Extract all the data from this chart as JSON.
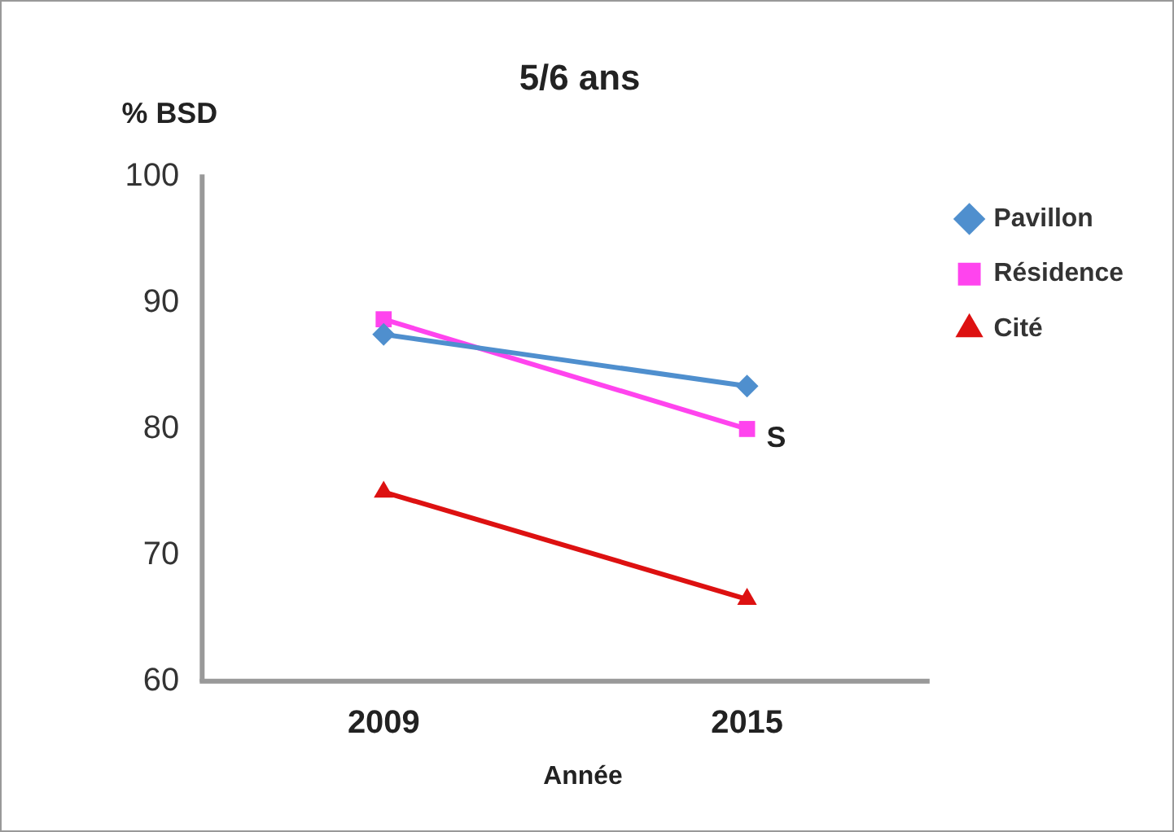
{
  "chart_data": {
    "type": "line",
    "title": "5/6 ans",
    "ylabel": "% BSD",
    "xlabel": "Année",
    "categories": [
      "2009",
      "2015"
    ],
    "series": [
      {
        "name": "Pavillon",
        "color": "#4f8fce",
        "values": [
          87.5,
          83.4
        ],
        "marker": "diamond"
      },
      {
        "name": "Résidence",
        "color": "#ff44ee",
        "values": [
          88.7,
          80
        ],
        "marker": "square"
      },
      {
        "name": "Cité",
        "color": "#dd1111",
        "values": [
          75,
          66.5
        ],
        "marker": "triangle"
      }
    ],
    "ylim": [
      60,
      100
    ],
    "yticks": [
      60,
      70,
      80,
      90,
      100
    ],
    "grid": false,
    "legend": "top right",
    "line_style": "solid",
    "annotations": [
      {
        "text": "S",
        "x": "2015",
        "y": 80
      }
    ]
  }
}
